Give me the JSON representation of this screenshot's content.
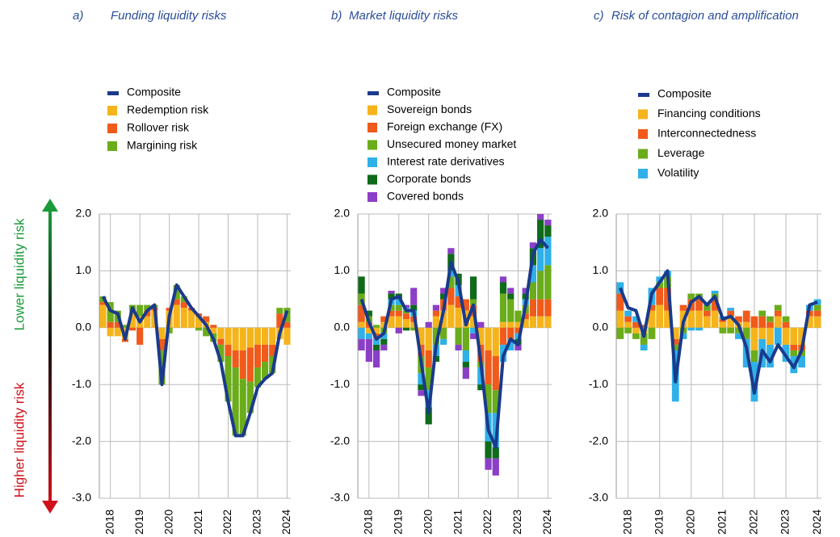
{
  "side_labels": {
    "lower": "Lower liquidity risk",
    "higher": "Higher liquidity risk"
  },
  "chart_data": [
    {
      "type": "bar",
      "stacked": true,
      "panel_label": "a)",
      "title": "Funding liquidity risks",
      "categories": [
        "2018",
        null,
        null,
        null,
        "2019",
        null,
        null,
        null,
        "2020",
        null,
        null,
        null,
        "2021",
        null,
        null,
        null,
        "2022",
        null,
        null,
        null,
        "2023",
        null,
        null,
        null,
        "2024",
        null
      ],
      "ylim": [
        -3,
        2
      ],
      "yticks": [
        {
          "value": 2,
          "label": "2.0"
        },
        {
          "value": 1,
          "label": "1.0"
        },
        {
          "value": 0,
          "label": "0.0"
        },
        {
          "value": -1,
          "label": "-1.0"
        },
        {
          "value": -2,
          "label": "-2.0"
        },
        {
          "value": -3,
          "label": "-3.0"
        }
      ],
      "grid": true,
      "series": [
        {
          "name": "Composite",
          "type": "line",
          "color": "#1a3a8c",
          "values": [
            0.55,
            0.3,
            0.25,
            -0.2,
            0.35,
            0.1,
            0.3,
            0.4,
            -1.0,
            0.2,
            0.75,
            0.55,
            0.35,
            0.2,
            0.05,
            -0.2,
            -0.6,
            -1.3,
            -1.9,
            -1.9,
            -1.5,
            -1.05,
            -0.9,
            -0.8,
            -0.1,
            0.3
          ]
        },
        {
          "name": "Redemption risk",
          "color": "#f5b41b",
          "values": [
            0.4,
            -0.15,
            -0.15,
            -0.2,
            0.3,
            0.2,
            0.2,
            0.3,
            -0.2,
            0.3,
            0.4,
            0.35,
            0.3,
            0.2,
            0.1,
            -0.1,
            -0.2,
            -0.3,
            -0.4,
            -0.4,
            -0.35,
            -0.3,
            -0.3,
            -0.3,
            -0.2,
            -0.3
          ]
        },
        {
          "name": "Rollover risk",
          "color": "#f05a1a",
          "values": [
            0.05,
            0.1,
            0.1,
            -0.05,
            -0.05,
            -0.3,
            0.1,
            0.05,
            -0.2,
            0.05,
            0.1,
            0.1,
            0.05,
            0.05,
            0.1,
            0.05,
            -0.1,
            -0.2,
            -0.3,
            -0.5,
            -0.6,
            -0.4,
            -0.3,
            -0.2,
            0.25,
            0.1
          ]
        },
        {
          "name": "Margining risk",
          "color": "#6aac1a",
          "values": [
            0.1,
            0.35,
            0.2,
            0.05,
            0.1,
            0.2,
            0.1,
            0.05,
            -0.6,
            -0.1,
            0.25,
            0.1,
            0,
            -0.05,
            -0.15,
            -0.15,
            -0.3,
            -0.8,
            -1.2,
            -1.0,
            -0.55,
            -0.35,
            -0.3,
            -0.3,
            0.1,
            0.25
          ]
        }
      ]
    },
    {
      "type": "bar",
      "stacked": true,
      "panel_label": "b)",
      "title": "Market liquidity risks",
      "categories": [
        "2018",
        null,
        null,
        null,
        "2019",
        null,
        null,
        null,
        "2020",
        null,
        null,
        null,
        "2021",
        null,
        null,
        null,
        "2022",
        null,
        null,
        null,
        "2023",
        null,
        null,
        null,
        "2024",
        null
      ],
      "ylim": [
        -3,
        2
      ],
      "yticks": [
        {
          "value": 2,
          "label": "2.0"
        },
        {
          "value": 1,
          "label": "1.0"
        },
        {
          "value": 0,
          "label": "0.0"
        },
        {
          "value": -1,
          "label": "-1.0"
        },
        {
          "value": -2,
          "label": "-2.0"
        },
        {
          "value": -3,
          "label": "-3.0"
        }
      ],
      "grid": true,
      "series": [
        {
          "name": "Composite",
          "type": "line",
          "color": "#1a3a8c",
          "values": [
            0.5,
            0.1,
            -0.2,
            -0.1,
            0.5,
            0.55,
            0.3,
            0.3,
            -0.6,
            -1.5,
            -0.3,
            0.3,
            1.15,
            0.8,
            0.05,
            0.4,
            -0.6,
            -1.8,
            -2.1,
            -0.5,
            -0.2,
            -0.3,
            0.4,
            1.3,
            1.55,
            1.4
          ]
        },
        {
          "name": "Sovereign bonds",
          "color": "#f5b41b",
          "values": [
            0.1,
            -0.1,
            -0.1,
            0.1,
            0.2,
            0.2,
            0.15,
            0.1,
            -0.3,
            -0.4,
            0.2,
            0.3,
            0.4,
            0.35,
            0.3,
            0.2,
            -0.3,
            -0.4,
            -0.5,
            0.1,
            0.1,
            0.1,
            0.15,
            0.2,
            0.2,
            0.2
          ]
        },
        {
          "name": "Foreign exchange (FX)",
          "color": "#f05a1a",
          "values": [
            0.3,
            0.1,
            -0.1,
            0.1,
            0.1,
            0.1,
            0.1,
            0.1,
            -0.2,
            -0.3,
            0.1,
            0.2,
            0.3,
            0.2,
            0.2,
            0.2,
            -0.3,
            -0.6,
            -0.6,
            -0.3,
            -0.2,
            -0.1,
            0.1,
            0.3,
            0.3,
            0.3
          ]
        },
        {
          "name": "Unsecured money market",
          "color": "#6aac1a",
          "values": [
            0.2,
            0.1,
            0.05,
            -0.1,
            0.1,
            0.1,
            0.05,
            -0.05,
            -0.3,
            -0.4,
            -0.3,
            -0.2,
            0.2,
            -0.3,
            -0.4,
            0.1,
            -0.1,
            -0.5,
            -0.4,
            0.5,
            0.4,
            0.2,
            0.15,
            0.3,
            0.5,
            0.6
          ]
        },
        {
          "name": "Interest rate derivatives",
          "color": "#2fb0e8",
          "values": [
            -0.2,
            -0.1,
            -0.1,
            -0.1,
            0.1,
            0.1,
            0.05,
            0.1,
            -0.2,
            -0.3,
            -0.2,
            -0.1,
            0.1,
            0.2,
            -0.2,
            -0.1,
            -0.3,
            -0.5,
            -0.6,
            -0.3,
            -0.2,
            -0.1,
            0.1,
            0.3,
            0.4,
            0.5
          ]
        },
        {
          "name": "Corporate bonds",
          "color": "#0f6b1a",
          "values": [
            0.3,
            0.1,
            -0.1,
            -0.1,
            0.1,
            0.1,
            -0.05,
            0.1,
            -0.1,
            -0.3,
            -0.1,
            0.1,
            0.3,
            0.2,
            -0.1,
            0.4,
            -0.1,
            -0.3,
            -0.2,
            0.2,
            0.1,
            -0.1,
            0.1,
            0.3,
            0.5,
            0.2
          ]
        },
        {
          "name": "Covered bonds",
          "color": "#8b3fc7",
          "values": [
            -0.2,
            -0.4,
            -0.3,
            -0.1,
            0.05,
            -0.1,
            0.05,
            0.3,
            -0.1,
            0.1,
            0.1,
            0.1,
            0.1,
            -0.1,
            -0.2,
            -0.1,
            0.1,
            -0.2,
            -0.3,
            0.1,
            0.1,
            -0.1,
            0.1,
            0.1,
            0.1,
            0.1
          ]
        }
      ]
    },
    {
      "type": "bar",
      "stacked": true,
      "panel_label": "c)",
      "title": "Risk of contagion and amplification",
      "categories": [
        "2018",
        null,
        null,
        null,
        "2019",
        null,
        null,
        null,
        "2020",
        null,
        null,
        null,
        "2021",
        null,
        null,
        null,
        "2022",
        null,
        null,
        null,
        "2023",
        null,
        null,
        null,
        "2024",
        null
      ],
      "ylim": [
        -3,
        2
      ],
      "yticks": [
        {
          "value": 2,
          "label": "2.0"
        },
        {
          "value": 1,
          "label": "1.0"
        },
        {
          "value": 0,
          "label": "0.0"
        },
        {
          "value": -1,
          "label": "-1.0"
        },
        {
          "value": -2,
          "label": "-2.0"
        },
        {
          "value": -3,
          "label": "-3.0"
        }
      ],
      "grid": true,
      "series": [
        {
          "name": "Composite",
          "type": "line",
          "color": "#1a3a8c",
          "values": [
            0.7,
            0.35,
            0.3,
            -0.15,
            0.6,
            0.8,
            1.0,
            -0.95,
            0.1,
            0.45,
            0.55,
            0.4,
            0.55,
            0.15,
            0.2,
            0.05,
            -0.35,
            -1.15,
            -0.4,
            -0.6,
            -0.3,
            -0.5,
            -0.7,
            -0.4,
            0.4,
            0.45
          ]
        },
        {
          "name": "Financing conditions",
          "color": "#f5b41b",
          "values": [
            0.3,
            0.1,
            -0.1,
            -0.1,
            0.3,
            0.4,
            0.3,
            -0.2,
            0.3,
            0.3,
            0.3,
            0.2,
            0.3,
            0.1,
            0.2,
            0.1,
            0.1,
            -0.4,
            -0.2,
            -0.3,
            0.2,
            -0.3,
            -0.3,
            -0.3,
            0.2,
            0.2
          ]
        },
        {
          "name": "Interconnectedness",
          "color": "#f05a1a",
          "values": [
            0.3,
            0.1,
            0.1,
            0.05,
            0.1,
            0.3,
            0.4,
            -0.1,
            0.1,
            0.2,
            0.2,
            0.1,
            0.2,
            0.05,
            0.1,
            0.1,
            0.2,
            0.2,
            0.2,
            0.1,
            0.1,
            0.1,
            -0.1,
            -0.1,
            0.1,
            0.1
          ]
        },
        {
          "name": "Leverage",
          "color": "#6aac1a",
          "values": [
            -0.2,
            -0.1,
            -0.1,
            -0.2,
            -0.2,
            0.1,
            0.2,
            -0.1,
            -0.1,
            0.1,
            0.1,
            0.1,
            0.1,
            -0.1,
            -0.1,
            -0.1,
            -0.2,
            -0.2,
            0.1,
            0.1,
            0.1,
            0.1,
            -0.1,
            -0.1,
            0,
            0.1
          ]
        },
        {
          "name": "Volatility",
          "color": "#2fb0e8",
          "values": [
            0.2,
            0.1,
            0.1,
            -0.1,
            0.3,
            0.1,
            0.1,
            -0.9,
            -0.1,
            -0.05,
            -0.05,
            0.05,
            0.05,
            0.05,
            0.05,
            -0.1,
            -0.5,
            -0.7,
            -0.5,
            -0.4,
            -0.3,
            -0.3,
            -0.3,
            -0.2,
            0.1,
            0.1
          ]
        }
      ]
    }
  ]
}
